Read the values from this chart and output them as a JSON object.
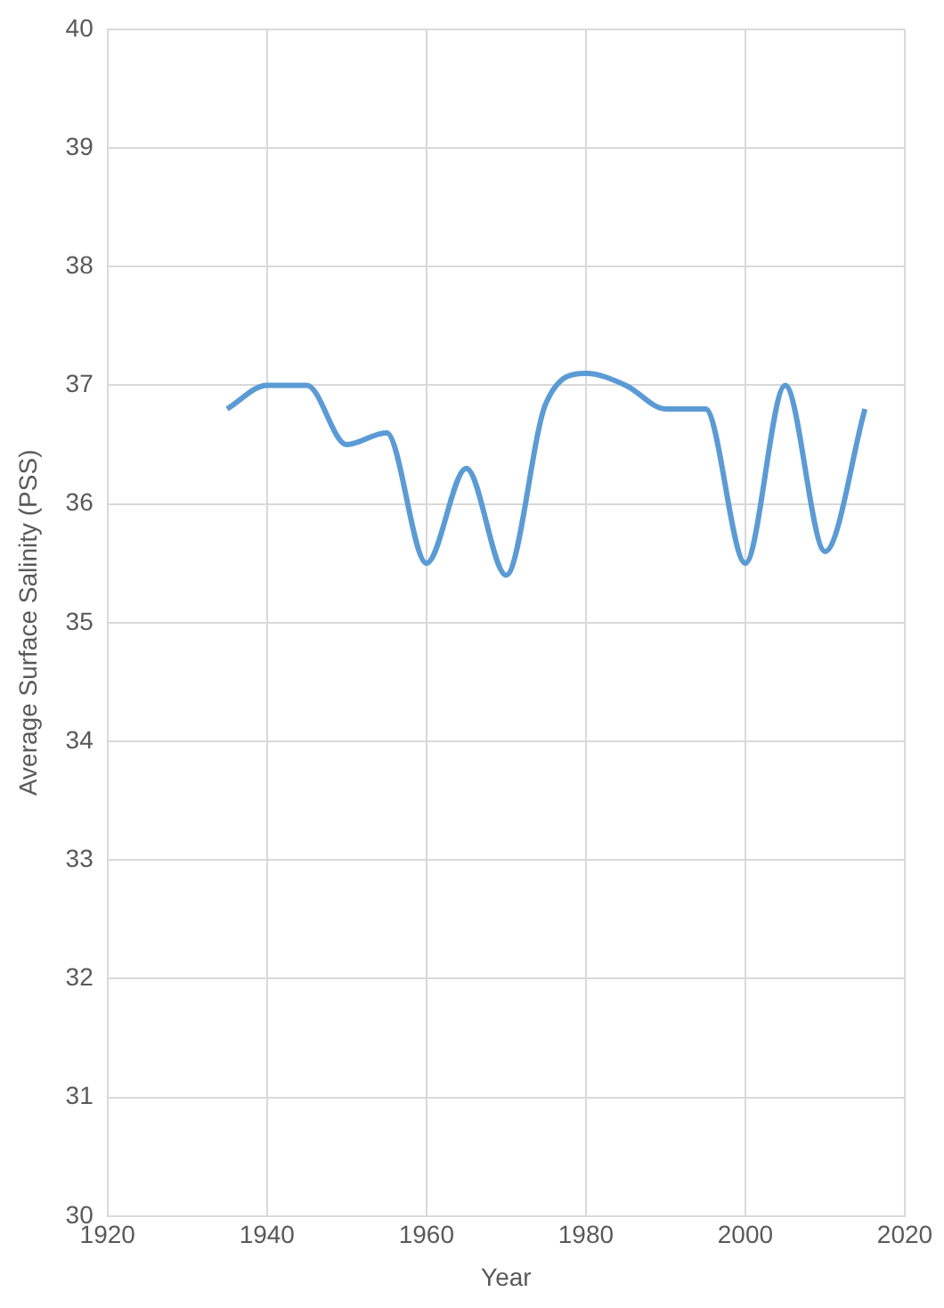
{
  "chart_data": {
    "type": "line",
    "xlabel": "Year",
    "ylabel": "Average Surface Salinity (PSS)",
    "x": [
      1935,
      1940,
      1945,
      1950,
      1955,
      1960,
      1965,
      1970,
      1975,
      1980,
      1985,
      1990,
      1995,
      2000,
      2005,
      2010,
      2015
    ],
    "series": [
      {
        "color": "#5b9bd5",
        "values": [
          36.8,
          37.0,
          37.0,
          36.5,
          36.6,
          35.5,
          36.3,
          35.4,
          36.85,
          37.1,
          37.0,
          36.8,
          36.8,
          35.5,
          37.0,
          35.6,
          36.8
        ]
      }
    ],
    "xlim": [
      1920,
      2020
    ],
    "xticks": [
      1920,
      1940,
      1960,
      1980,
      2000,
      2020
    ],
    "ylim": [
      30,
      40
    ],
    "yticks": [
      30,
      31,
      32,
      33,
      34,
      35,
      36,
      37,
      38,
      39,
      40
    ],
    "grid": true,
    "marker": "none",
    "line_style": "solid"
  }
}
